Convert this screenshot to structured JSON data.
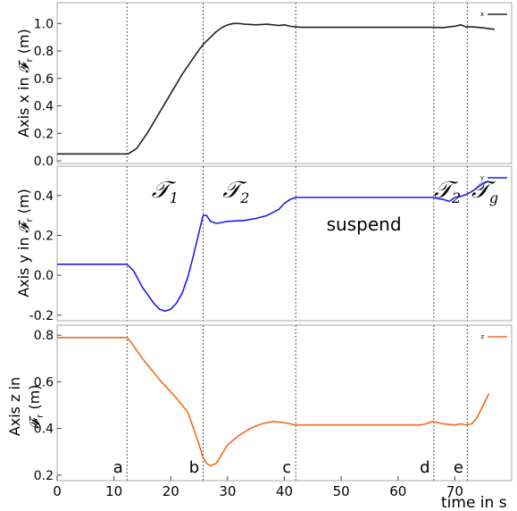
{
  "colors": {
    "x": "#222222",
    "y": "#1c1cf0",
    "z": "#f26a1b",
    "frame": "#aaaaaa",
    "grid_line": "#555555"
  },
  "chart_data": [
    {
      "type": "line",
      "ylabel": "Axis x in 𝓕",
      "ylabel_sub": "r",
      "ylabel_unit": " (m)",
      "legend": "x",
      "xlim": [
        0,
        80
      ],
      "ylim": [
        0.0,
        1.08
      ],
      "yticks": [
        "0.0",
        "0.2",
        "0.4",
        "0.6",
        "0.8",
        "1.0"
      ],
      "ytick_values": [
        0.0,
        0.2,
        0.4,
        0.6,
        0.8,
        1.0
      ],
      "series": [
        {
          "x": [
            0,
            11,
            12.5,
            14,
            16,
            18,
            20,
            22,
            24,
            25,
            26,
            27,
            28,
            29,
            30,
            31,
            32,
            33,
            35,
            37,
            38,
            39,
            40,
            41,
            42,
            43,
            50,
            60,
            66,
            68,
            69,
            70,
            71,
            72,
            73,
            74,
            75,
            76,
            77
          ],
          "y": [
            0.05,
            0.05,
            0.05,
            0.09,
            0.21,
            0.35,
            0.49,
            0.63,
            0.75,
            0.81,
            0.86,
            0.9,
            0.94,
            0.97,
            0.99,
            1.0,
            1.0,
            0.995,
            0.99,
            0.995,
            0.99,
            0.985,
            0.99,
            0.98,
            0.975,
            0.972,
            0.972,
            0.972,
            0.972,
            0.97,
            0.975,
            0.98,
            0.99,
            0.975,
            0.975,
            0.972,
            0.968,
            0.962,
            0.958
          ]
        }
      ]
    },
    {
      "type": "line",
      "ylabel": "Axis y in 𝓕",
      "ylabel_sub": "r",
      "ylabel_unit": " (m)",
      "legend": "y",
      "xlim": [
        0,
        80
      ],
      "ylim": [
        -0.21,
        0.52
      ],
      "yticks": [
        "-0.2",
        "0.0",
        "0.2",
        "0.4"
      ],
      "ytick_values": [
        -0.2,
        0.0,
        0.2,
        0.4
      ],
      "series": [
        {
          "x": [
            0,
            12.3,
            13.5,
            15,
            17,
            18,
            19,
            20,
            21,
            22,
            23,
            24,
            25,
            25.7,
            26.3,
            27,
            28,
            30,
            33,
            35,
            37,
            39,
            40,
            41,
            42,
            43,
            50,
            60,
            66,
            68,
            69,
            70,
            71,
            72,
            73,
            74,
            75,
            75.8
          ],
          "y": [
            0.055,
            0.055,
            0.02,
            -0.06,
            -0.14,
            -0.17,
            -0.18,
            -0.17,
            -0.14,
            -0.09,
            -0.01,
            0.1,
            0.22,
            0.3,
            0.3,
            0.27,
            0.26,
            0.27,
            0.275,
            0.285,
            0.3,
            0.33,
            0.36,
            0.38,
            0.39,
            0.39,
            0.39,
            0.39,
            0.39,
            0.38,
            0.37,
            0.39,
            0.395,
            0.405,
            0.42,
            0.44,
            0.46,
            0.47
          ]
        }
      ]
    },
    {
      "type": "line",
      "ylabel": "Axis z in",
      "ylabel_frame": "𝓕",
      "ylabel_sub": "r",
      "ylabel_unit": " (m)",
      "legend": "z",
      "xlabel": "time in s",
      "xlim": [
        0,
        80
      ],
      "ylim": [
        0.18,
        0.82
      ],
      "yticks": [
        "0.2",
        "0.4",
        "0.6",
        "0.8"
      ],
      "ytick_values": [
        0.2,
        0.4,
        0.6,
        0.8
      ],
      "xticks": [
        "0",
        "10",
        "20",
        "30",
        "40",
        "50",
        "60",
        "70"
      ],
      "xtick_values": [
        0,
        10,
        20,
        30,
        40,
        50,
        60,
        70
      ],
      "series": [
        {
          "x": [
            0,
            12.3,
            13,
            15,
            18,
            21,
            23,
            24,
            25,
            25.6,
            26.3,
            27,
            28,
            29,
            30,
            32,
            34,
            36,
            38,
            40,
            41,
            42,
            50,
            60,
            64,
            65,
            66,
            68,
            70,
            71,
            72,
            73,
            74,
            75,
            76
          ],
          "y": [
            0.79,
            0.79,
            0.77,
            0.7,
            0.61,
            0.53,
            0.47,
            0.4,
            0.33,
            0.28,
            0.25,
            0.24,
            0.25,
            0.29,
            0.33,
            0.37,
            0.4,
            0.42,
            0.43,
            0.425,
            0.42,
            0.415,
            0.415,
            0.415,
            0.415,
            0.42,
            0.43,
            0.42,
            0.415,
            0.42,
            0.415,
            0.42,
            0.45,
            0.5,
            0.55
          ]
        }
      ]
    }
  ],
  "events": [
    {
      "label": "a",
      "t": 12.3
    },
    {
      "label": "b",
      "t": 25.7
    },
    {
      "label": "c",
      "t": 42
    },
    {
      "label": "d",
      "t": 66.3
    },
    {
      "label": "e",
      "t": 72.2
    }
  ],
  "phases": [
    {
      "label": "𝒯",
      "sub": "1",
      "t": 19
    },
    {
      "label": "𝒯",
      "sub": "2",
      "t": 31.5
    },
    {
      "label": "suspend",
      "sub": "",
      "t": 54
    },
    {
      "label": "𝒯",
      "sub": "2",
      "t": 68.7
    },
    {
      "label": "𝒯",
      "sub": "g",
      "t": 75.3
    }
  ]
}
